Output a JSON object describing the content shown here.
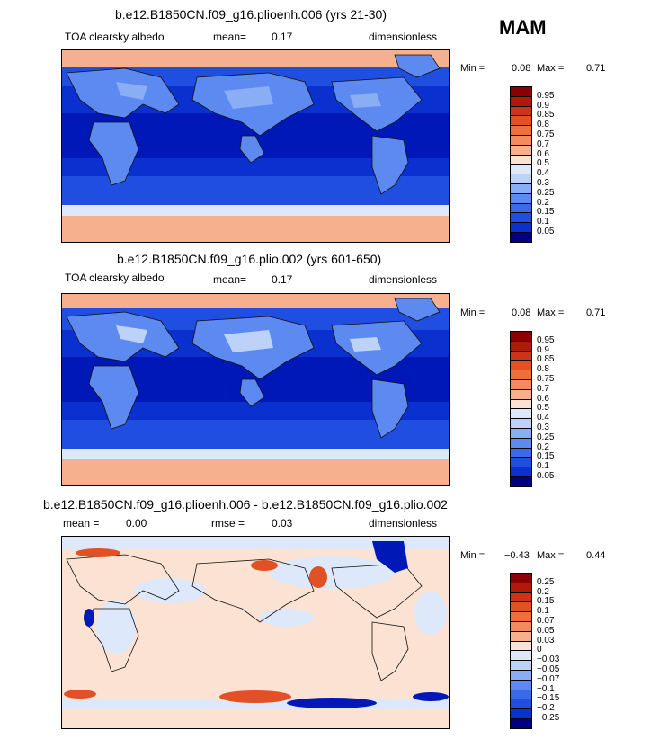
{
  "season": "MAM",
  "colors": {
    "land_outline": "#111111",
    "warm_palette": [
      "#f8d8c4",
      "#f5c3a8",
      "#f4a582",
      "#f08a5e",
      "#e86a3c",
      "#d64a24",
      "#bb2a12",
      "#8b0000"
    ],
    "cool_palette": [
      "#000080",
      "#0018b8",
      "#0a30d0",
      "#1f4ee0",
      "#3a6ae8",
      "#5c8af0",
      "#8aaef5",
      "#bcd2f8",
      "#dde9fb"
    ]
  },
  "panels": [
    {
      "title": "b.e12.B1850CN.f09_g16.plioenh.006 (yrs 21-30)",
      "left_label": "TOA clearsky albedo",
      "center_label": "mean=",
      "center_value": "0.17",
      "right_label": "dimensionless",
      "min_label": "Min =",
      "min_value": "0.08",
      "max_label": "Max =",
      "max_value": "0.71",
      "colorbar": [
        "0.95",
        "0.9",
        "0.85",
        "0.8",
        "0.75",
        "0.7",
        "0.6",
        "0.5",
        "0.4",
        "0.3",
        "0.25",
        "0.2",
        "0.15",
        "0.1",
        "0.05"
      ],
      "colorbar_colors": [
        "#8b0000",
        "#b01a0a",
        "#cc3318",
        "#e25026",
        "#f06e3c",
        "#f58a5e",
        "#f7b08e",
        "#fbe2d2",
        "#dde9fb",
        "#bcd2f8",
        "#8aaef5",
        "#5c8af0",
        "#3a6ae8",
        "#1f4ee0",
        "#0a30d0",
        "#000080"
      ]
    },
    {
      "title": "b.e12.B1850CN.f09_g16.plio.002 (yrs 601-650)",
      "left_label": "TOA clearsky albedo",
      "center_label": "mean=",
      "center_value": "0.17",
      "right_label": "dimensionless",
      "min_label": "Min =",
      "min_value": "0.08",
      "max_label": "Max =",
      "max_value": "0.71",
      "colorbar": [
        "0.95",
        "0.9",
        "0.85",
        "0.8",
        "0.75",
        "0.7",
        "0.6",
        "0.5",
        "0.4",
        "0.3",
        "0.25",
        "0.2",
        "0.15",
        "0.1",
        "0.05"
      ],
      "colorbar_colors": [
        "#8b0000",
        "#b01a0a",
        "#cc3318",
        "#e25026",
        "#f06e3c",
        "#f58a5e",
        "#f7b08e",
        "#fbe2d2",
        "#dde9fb",
        "#bcd2f8",
        "#8aaef5",
        "#5c8af0",
        "#3a6ae8",
        "#1f4ee0",
        "#0a30d0",
        "#000080"
      ]
    },
    {
      "title": "b.e12.B1850CN.f09_g16.plioenh.006 - b.e12.B1850CN.f09_g16.plio.002",
      "left_label": "mean =",
      "left_value": "0.00",
      "center_label": "rmse =",
      "center_value": "0.03",
      "right_label": "dimensionless",
      "min_label": "Min =",
      "min_value": "−0.43",
      "max_label": "Max =",
      "max_value": "0.44",
      "colorbar": [
        "0.25",
        "0.2",
        "0.15",
        "0.1",
        "0.07",
        "0.05",
        "0.03",
        "0",
        "−0.03",
        "−0.05",
        "−0.07",
        "−0.1",
        "−0.15",
        "−0.2",
        "−0.25"
      ],
      "colorbar_colors": [
        "#8b0000",
        "#b01a0a",
        "#cc3318",
        "#e25026",
        "#f06e3c",
        "#f58a5e",
        "#f7b08e",
        "#fbe2d2",
        "#dde9fb",
        "#bcd2f8",
        "#8aaef5",
        "#5c8af0",
        "#3a6ae8",
        "#1f4ee0",
        "#0a30d0",
        "#000080"
      ]
    }
  ]
}
